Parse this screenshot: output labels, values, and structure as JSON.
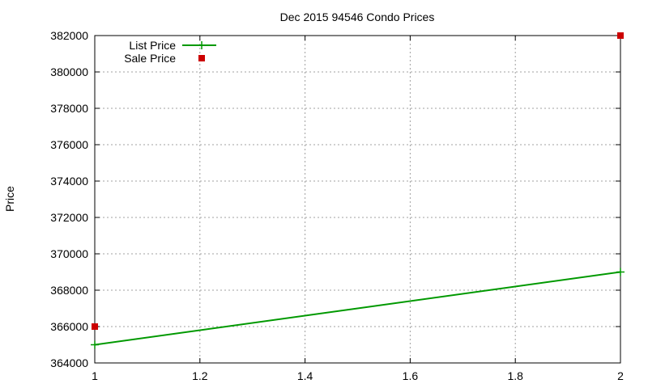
{
  "chart_data": {
    "type": "line",
    "title": "Dec 2015 94546 Condo Prices",
    "xlabel": "",
    "ylabel": "Price",
    "xlim": [
      1,
      2
    ],
    "ylim": [
      364000,
      382000
    ],
    "x_ticks": [
      "1",
      "1.2",
      "1.4",
      "1.6",
      "1.8",
      "2"
    ],
    "y_ticks": [
      "364000",
      "366000",
      "368000",
      "370000",
      "372000",
      "374000",
      "376000",
      "378000",
      "380000",
      "382000"
    ],
    "grid": true,
    "legend_position": "top-left",
    "series": [
      {
        "name": "List Price",
        "style": "linespoints",
        "marker": "plus",
        "color": "#009900",
        "x": [
          1,
          2
        ],
        "y": [
          365000,
          369000
        ]
      },
      {
        "name": "Sale Price",
        "style": "points",
        "marker": "square",
        "color": "#cc0000",
        "x": [
          1,
          2
        ],
        "y": [
          366000,
          382000
        ]
      }
    ]
  }
}
